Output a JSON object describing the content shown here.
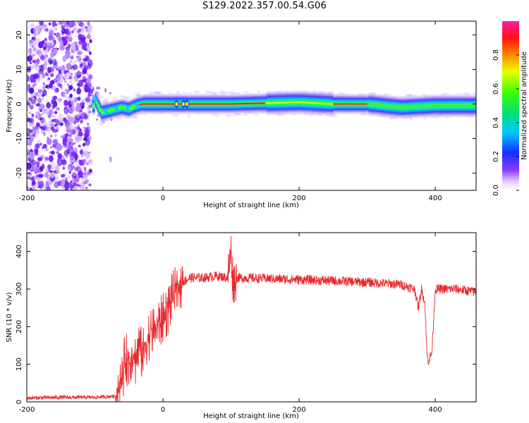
{
  "figure": {
    "title": "S129.2022.357.00.54.G06"
  },
  "chart_data": [
    {
      "type": "heatmap",
      "xlabel": "Height of straight line (km)",
      "ylabel": "Frequency (Hz)",
      "xlim": [
        -200,
        460
      ],
      "ylim": [
        -25,
        24
      ],
      "xticks": [
        -200,
        0,
        200,
        400
      ],
      "yticks": [
        -20,
        -10,
        0,
        10,
        20
      ],
      "colorbar": {
        "label": "Normalized spectral amplitude",
        "range": [
          0,
          1
        ],
        "ticks": [
          0.0,
          0.2,
          0.4,
          0.6,
          0.8
        ]
      },
      "ridge": {
        "description_points": [
          {
            "x": -100,
            "y": 1.5
          },
          {
            "x": -90,
            "y": -2.5
          },
          {
            "x": -80,
            "y": -2
          },
          {
            "x": -70,
            "y": -1.5
          },
          {
            "x": -60,
            "y": -1
          },
          {
            "x": -50,
            "y": -1.5
          },
          {
            "x": -40,
            "y": -0.5
          },
          {
            "x": -30,
            "y": 0
          },
          {
            "x": 0,
            "y": 0
          },
          {
            "x": 100,
            "y": 0
          },
          {
            "x": 200,
            "y": 0.5
          },
          {
            "x": 250,
            "y": 0
          },
          {
            "x": 300,
            "y": 0
          },
          {
            "x": 350,
            "y": -1
          },
          {
            "x": 400,
            "y": -0.5
          },
          {
            "x": 460,
            "y": -0.5
          }
        ]
      },
      "grid": false
    },
    {
      "type": "line",
      "xlabel": "Height of straight line (km)",
      "ylabel": "SNR (10 * v/v)",
      "xlim": [
        -200,
        460
      ],
      "ylim": [
        0,
        450
      ],
      "xticks": [
        -200,
        0,
        200,
        400
      ],
      "yticks": [
        0,
        100,
        200,
        300,
        400
      ],
      "series": [
        {
          "color": "#e8282b",
          "x": [
            -200,
            -150,
            -100,
            -70,
            -60,
            -55,
            -50,
            -45,
            -40,
            -35,
            -30,
            -25,
            -20,
            -15,
            -10,
            -5,
            0,
            10,
            20,
            30,
            40,
            60,
            80,
            95,
            100,
            103,
            110,
            150,
            200,
            250,
            300,
            350,
            370,
            375,
            380,
            385,
            388,
            390,
            395,
            400,
            430,
            460
          ],
          "y": [
            10,
            12,
            12,
            15,
            60,
            120,
            100,
            140,
            110,
            150,
            120,
            160,
            180,
            190,
            200,
            210,
            220,
            260,
            300,
            320,
            330,
            330,
            335,
            330,
            400,
            320,
            330,
            328,
            325,
            322,
            318,
            312,
            300,
            250,
            300,
            260,
            120,
            110,
            130,
            300,
            300,
            292
          ]
        }
      ],
      "grid": false
    }
  ]
}
